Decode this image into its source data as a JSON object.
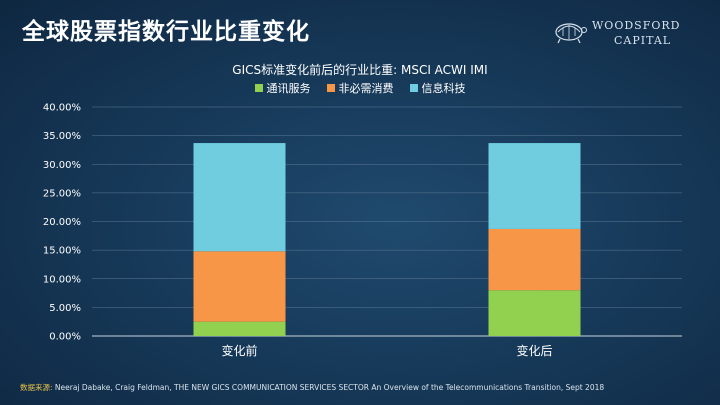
{
  "slide": {
    "title": "全球股票指数行业比重变化",
    "logo": {
      "line1": "WOODSFORD",
      "line2": "CAPITAL"
    },
    "source_label": "数据来源:",
    "source_text": "Neeraj Dabake, Craig Feldman, THE NEW GICS COMMUNICATION SERVICES SECTOR An Overview of the Telecommunications Transition, Sept 2018"
  },
  "chart_data": {
    "type": "bar",
    "stacked": true,
    "title": "GICS标准变化前后的行业比重: MSCI ACWI IMI",
    "categories": [
      "变化前",
      "变化后"
    ],
    "series": [
      {
        "name": "通讯服务",
        "color": "#92d050",
        "values": [
          2.5,
          8.0
        ]
      },
      {
        "name": "非必需消费",
        "color": "#f79646",
        "values": [
          12.3,
          10.7
        ]
      },
      {
        "name": "信息科技",
        "color": "#70cde0",
        "values": [
          18.9,
          15.0
        ]
      }
    ],
    "ylim": [
      0,
      40
    ],
    "yticks": [
      "0.00%",
      "5.00%",
      "10.00%",
      "15.00%",
      "20.00%",
      "25.00%",
      "30.00%",
      "35.00%",
      "40.00%"
    ],
    "legend_position": "top-center",
    "grid": true
  }
}
